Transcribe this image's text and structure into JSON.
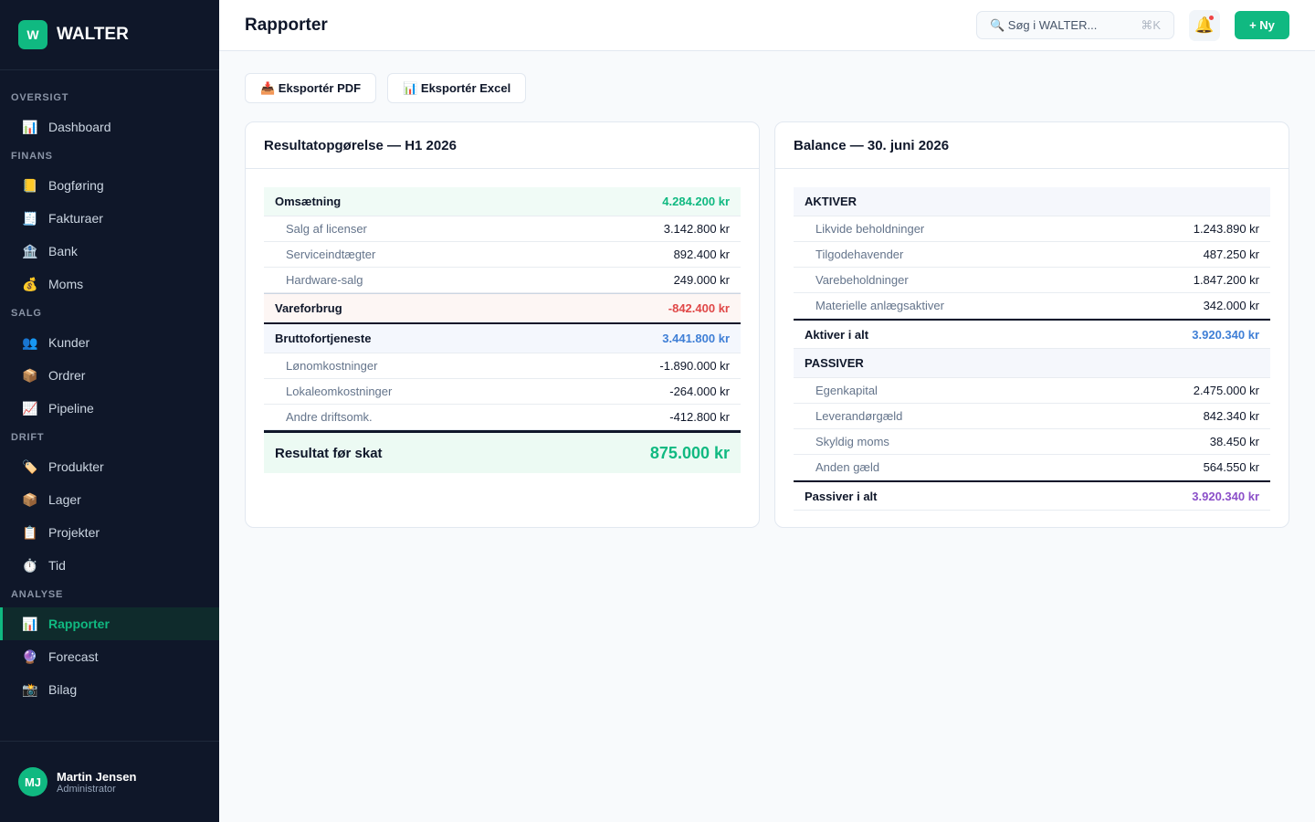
{
  "sidebar": {
    "logo_letter": "W",
    "brand": "WALTER",
    "sections": [
      {
        "title": "OVERSIGT",
        "items": [
          {
            "icon": "📊",
            "label": "Dashboard"
          }
        ]
      },
      {
        "title": "FINANS",
        "items": [
          {
            "icon": "📒",
            "label": "Bogføring"
          },
          {
            "icon": "🧾",
            "label": "Fakturaer"
          },
          {
            "icon": "🏦",
            "label": "Bank"
          },
          {
            "icon": "💰",
            "label": "Moms"
          }
        ]
      },
      {
        "title": "SALG",
        "items": [
          {
            "icon": "👥",
            "label": "Kunder"
          },
          {
            "icon": "📦",
            "label": "Ordrer"
          },
          {
            "icon": "📈",
            "label": "Pipeline"
          }
        ]
      },
      {
        "title": "DRIFT",
        "items": [
          {
            "icon": "🏷️",
            "label": "Produkter"
          },
          {
            "icon": "📦",
            "label": "Lager"
          },
          {
            "icon": "📋",
            "label": "Projekter"
          },
          {
            "icon": "⏱️",
            "label": "Tid"
          }
        ]
      },
      {
        "title": "ANALYSE",
        "items": [
          {
            "icon": "📊",
            "label": "Rapporter",
            "active": true
          },
          {
            "icon": "🔮",
            "label": "Forecast"
          },
          {
            "icon": "📸",
            "label": "Bilag"
          }
        ]
      }
    ],
    "user": {
      "initials": "MJ",
      "name": "Martin Jensen",
      "role": "Administrator"
    }
  },
  "header": {
    "title": "Rapporter",
    "search": "🔍 Søg i WALTER...",
    "shortcut": "⌘K",
    "bell": "🔔",
    "new_button": "+ Ny"
  },
  "actions": [
    "📥 Eksportér PDF",
    "📊 Eksportér Excel"
  ],
  "cards": [
    {
      "title": "Resultatopgørelse — H1 2026",
      "rows": [
        {
          "kind": "group",
          "label": "Omsætning",
          "value": "4.284.200 kr",
          "bg": "#f0fbf6",
          "value_color": "#10b981"
        },
        {
          "kind": "item",
          "label": "Salg af licenser",
          "value": "3.142.800 kr"
        },
        {
          "kind": "item",
          "label": "Serviceindtægter",
          "value": "892.400 kr"
        },
        {
          "kind": "item",
          "label": "Hardware-salg",
          "value": "249.000 kr"
        },
        {
          "kind": "subtotal",
          "label": "Vareforbrug",
          "value": "-842.400 kr",
          "bg": "#fdf6f4",
          "value_color": "#e04848"
        },
        {
          "kind": "group",
          "label": "Bruttofortjeneste",
          "value": "3.441.800 kr",
          "bg": "#f4f7fd",
          "value_color": "#3f7fd6"
        },
        {
          "kind": "item",
          "label": "Lønomkostninger",
          "value": "-1.890.000 kr"
        },
        {
          "kind": "item",
          "label": "Lokaleomkostninger",
          "value": "-264.000 kr"
        },
        {
          "kind": "item",
          "label": "Andre driftsomk.",
          "value": "-412.800 kr"
        },
        {
          "kind": "result",
          "label": "Resultat før skat",
          "value": "875.000 kr",
          "bg": "#ecfaf3",
          "value_color": "#10b981"
        }
      ]
    },
    {
      "title": "Balance — 30. juni 2026",
      "rows": [
        {
          "kind": "header",
          "label": "AKTIVER",
          "bg": "#f5f7fc"
        },
        {
          "kind": "item",
          "label": "Likvide beholdninger",
          "value": "1.243.890 kr"
        },
        {
          "kind": "item",
          "label": "Tilgodehavender",
          "value": "487.250 kr"
        },
        {
          "kind": "item",
          "label": "Varebeholdninger",
          "value": "1.847.200 kr"
        },
        {
          "kind": "item",
          "label": "Materielle anlægsaktiver",
          "value": "342.000 kr"
        },
        {
          "kind": "total",
          "label": "Aktiver i alt",
          "value": "3.920.340 kr",
          "value_color": "#3f7fd6"
        },
        {
          "kind": "header",
          "label": "PASSIVER",
          "bg": "#f5f7fc"
        },
        {
          "kind": "item",
          "label": "Egenkapital",
          "value": "2.475.000 kr"
        },
        {
          "kind": "item",
          "label": "Leverandørgæld",
          "value": "842.340 kr"
        },
        {
          "kind": "item",
          "label": "Skyldig moms",
          "value": "38.450 kr"
        },
        {
          "kind": "item",
          "label": "Anden gæld",
          "value": "564.550 kr"
        },
        {
          "kind": "total",
          "label": "Passiver i alt",
          "value": "3.920.340 kr",
          "value_color": "#8b4fc9"
        }
      ]
    }
  ]
}
